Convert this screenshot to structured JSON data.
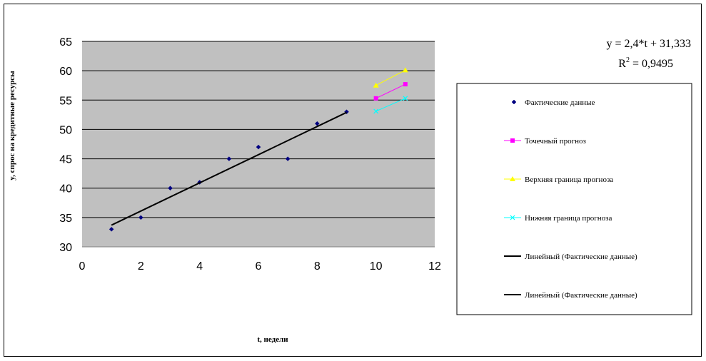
{
  "chart_data": {
    "type": "scatter",
    "xlabel": "t, недели",
    "ylabel": "y, спрос на кредитные ресурсы",
    "xlim": [
      0,
      12
    ],
    "ylim": [
      30,
      65
    ],
    "xticks": [
      0,
      2,
      4,
      6,
      8,
      10,
      12
    ],
    "yticks": [
      30,
      35,
      40,
      45,
      50,
      55,
      60,
      65
    ],
    "grid": "horizontal",
    "plot_background": "#c0c0c0",
    "legend_position": "right",
    "series": [
      {
        "name": "Фактические данные",
        "kind": "markers",
        "marker": "diamond",
        "color": "#000080",
        "x": [
          1,
          2,
          3,
          4,
          5,
          6,
          7,
          8,
          9
        ],
        "y": [
          33,
          35,
          40,
          41,
          45,
          47,
          45,
          51,
          53
        ]
      },
      {
        "name": "Точечный прогноз",
        "kind": "line-markers",
        "marker": "square",
        "color": "#ff00ff",
        "x": [
          10,
          11
        ],
        "y": [
          55.3,
          57.7
        ]
      },
      {
        "name": "Верхняя граница прогноза",
        "kind": "line-markers",
        "marker": "triangle",
        "color": "#ffff00",
        "x": [
          10,
          11
        ],
        "y": [
          57.5,
          60.1
        ]
      },
      {
        "name": "Нижняя граница прогноза",
        "kind": "line-markers",
        "marker": "x",
        "color": "#00ffff",
        "x": [
          10,
          11
        ],
        "y": [
          53.1,
          55.3
        ]
      },
      {
        "name": "Линейный (Фактические данные)",
        "kind": "line",
        "color": "#000000",
        "x": [
          1,
          9
        ],
        "y": [
          33.7,
          52.9
        ]
      },
      {
        "name": "Линейный (Фактические данные)",
        "kind": "legend-only",
        "color": "#000000"
      }
    ],
    "trendline": {
      "equation": "y = 2,4*t + 31,333",
      "r2_label": "R",
      "r2_sup": "2",
      "r2_value": " = 0,9495"
    }
  }
}
